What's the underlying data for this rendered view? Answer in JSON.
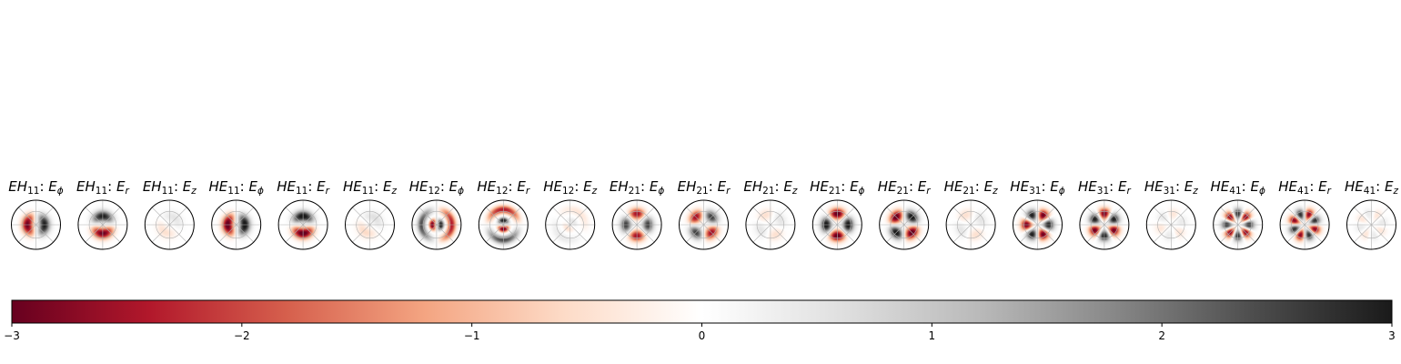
{
  "chart_data": {
    "type": "heatmap",
    "subplot_type": "polar",
    "plots": [
      {
        "mode": "EH",
        "sub": "11",
        "comp": "ϕ",
        "m": 1,
        "kind": "phi",
        "amp": 3.0,
        "rings": 1
      },
      {
        "mode": "EH",
        "sub": "11",
        "comp": "r",
        "m": 1,
        "kind": "r",
        "amp": 3.0,
        "rings": 1
      },
      {
        "mode": "EH",
        "sub": "11",
        "comp": "z",
        "m": 1,
        "kind": "z",
        "amp": 0.5,
        "rings": 1
      },
      {
        "mode": "HE",
        "sub": "11",
        "comp": "ϕ",
        "m": 1,
        "kind": "phi",
        "amp": 3.2,
        "rings": 1
      },
      {
        "mode": "HE",
        "sub": "11",
        "comp": "r",
        "m": 1,
        "kind": "r",
        "amp": 3.2,
        "rings": 1
      },
      {
        "mode": "HE",
        "sub": "11",
        "comp": "z",
        "m": 1,
        "kind": "z",
        "amp": 0.6,
        "rings": 1
      },
      {
        "mode": "HE",
        "sub": "12",
        "comp": "ϕ",
        "m": 1,
        "kind": "phi",
        "amp": 3.0,
        "rings": 2
      },
      {
        "mode": "HE",
        "sub": "12",
        "comp": "r",
        "m": 1,
        "kind": "r",
        "amp": 3.0,
        "rings": 2
      },
      {
        "mode": "HE",
        "sub": "12",
        "comp": "z",
        "m": 1,
        "kind": "z",
        "amp": 0.5,
        "rings": 2
      },
      {
        "mode": "EH",
        "sub": "21",
        "comp": "ϕ",
        "m": 2,
        "kind": "phi",
        "amp": 2.6,
        "rings": 1
      },
      {
        "mode": "EH",
        "sub": "21",
        "comp": "r",
        "m": 2,
        "kind": "r",
        "amp": 2.6,
        "rings": 1
      },
      {
        "mode": "EH",
        "sub": "21",
        "comp": "z",
        "m": 2,
        "kind": "z",
        "amp": 0.5,
        "rings": 1
      },
      {
        "mode": "HE",
        "sub": "21",
        "comp": "ϕ",
        "m": 2,
        "kind": "phi",
        "amp": 3.2,
        "rings": 1
      },
      {
        "mode": "HE",
        "sub": "21",
        "comp": "r",
        "m": 2,
        "kind": "r",
        "amp": 3.2,
        "rings": 1
      },
      {
        "mode": "HE",
        "sub": "21",
        "comp": "z",
        "m": 2,
        "kind": "z",
        "amp": 0.5,
        "rings": 1
      },
      {
        "mode": "HE",
        "sub": "31",
        "comp": "ϕ",
        "m": 3,
        "kind": "phi",
        "amp": 3.0,
        "rings": 1
      },
      {
        "mode": "HE",
        "sub": "31",
        "comp": "r",
        "m": 3,
        "kind": "r",
        "amp": 3.0,
        "rings": 1
      },
      {
        "mode": "HE",
        "sub": "31",
        "comp": "z",
        "m": 3,
        "kind": "z",
        "amp": 0.4,
        "rings": 1
      },
      {
        "mode": "HE",
        "sub": "41",
        "comp": "ϕ",
        "m": 4,
        "kind": "phi",
        "amp": 2.8,
        "rings": 1
      },
      {
        "mode": "HE",
        "sub": "41",
        "comp": "r",
        "m": 4,
        "kind": "r",
        "amp": 2.8,
        "rings": 1
      },
      {
        "mode": "HE",
        "sub": "41",
        "comp": "z",
        "m": 4,
        "kind": "z",
        "amp": 0.4,
        "rings": 1
      }
    ],
    "colorbar": {
      "min": -3,
      "max": 3,
      "ticks": [
        -3,
        -2,
        -1,
        0,
        1,
        2,
        3
      ],
      "tick_labels": [
        "−3",
        "−2",
        "−1",
        "0",
        "1",
        "2",
        "3"
      ],
      "colormap": [
        "#67001f",
        "#b2182b",
        "#d6604d",
        "#f4a582",
        "#fddbc7",
        "#ffffff",
        "#e0e0e0",
        "#bababa",
        "#878787",
        "#4d4d4d",
        "#1a1a1a"
      ]
    },
    "grid": true
  }
}
